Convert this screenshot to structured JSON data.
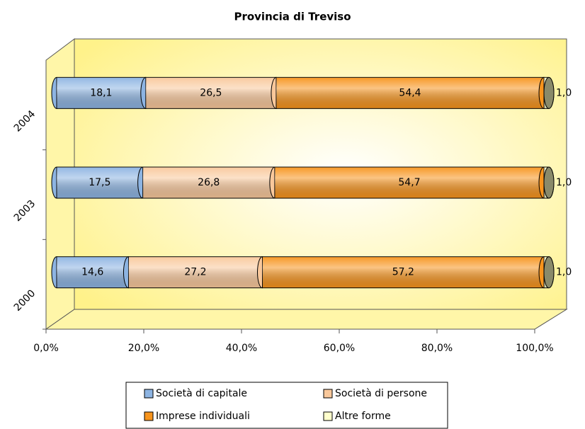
{
  "chart_data": {
    "type": "bar",
    "orientation": "horizontal",
    "stacked": true,
    "title": "Provincia di Treviso",
    "categories": [
      "2000",
      "2003",
      "2004"
    ],
    "series": [
      {
        "name": "Società di capitale",
        "color": "#8db4e2",
        "values": [
          14.6,
          17.5,
          18.1
        ],
        "value_labels": [
          "14,6",
          "17,5",
          "18,1"
        ]
      },
      {
        "name": "Società di persone",
        "color": "#f9c89b",
        "values": [
          27.2,
          26.8,
          26.5
        ],
        "value_labels": [
          "27,2",
          "26,8",
          "26,5"
        ]
      },
      {
        "name": "Imprese individuali",
        "color": "#f7941d",
        "values": [
          57.2,
          54.7,
          54.4
        ],
        "value_labels": [
          "57,2",
          "54,7",
          "54,4"
        ]
      },
      {
        "name": "Altre forme",
        "color": "#ffffcc",
        "values": [
          1.0,
          1.0,
          1.0
        ],
        "value_labels": [
          "1,0",
          "1,0",
          "1,0"
        ]
      }
    ],
    "xlim": [
      0,
      100
    ],
    "xticks": [
      {
        "value": 0,
        "label": "0,0%"
      },
      {
        "value": 20,
        "label": "20,0%"
      },
      {
        "value": 40,
        "label": "40,0%"
      },
      {
        "value": 60,
        "label": "60,0%"
      },
      {
        "value": 80,
        "label": "80,0%"
      },
      {
        "value": 100,
        "label": "100,0%"
      }
    ],
    "grid": false,
    "legend": "bottom"
  }
}
